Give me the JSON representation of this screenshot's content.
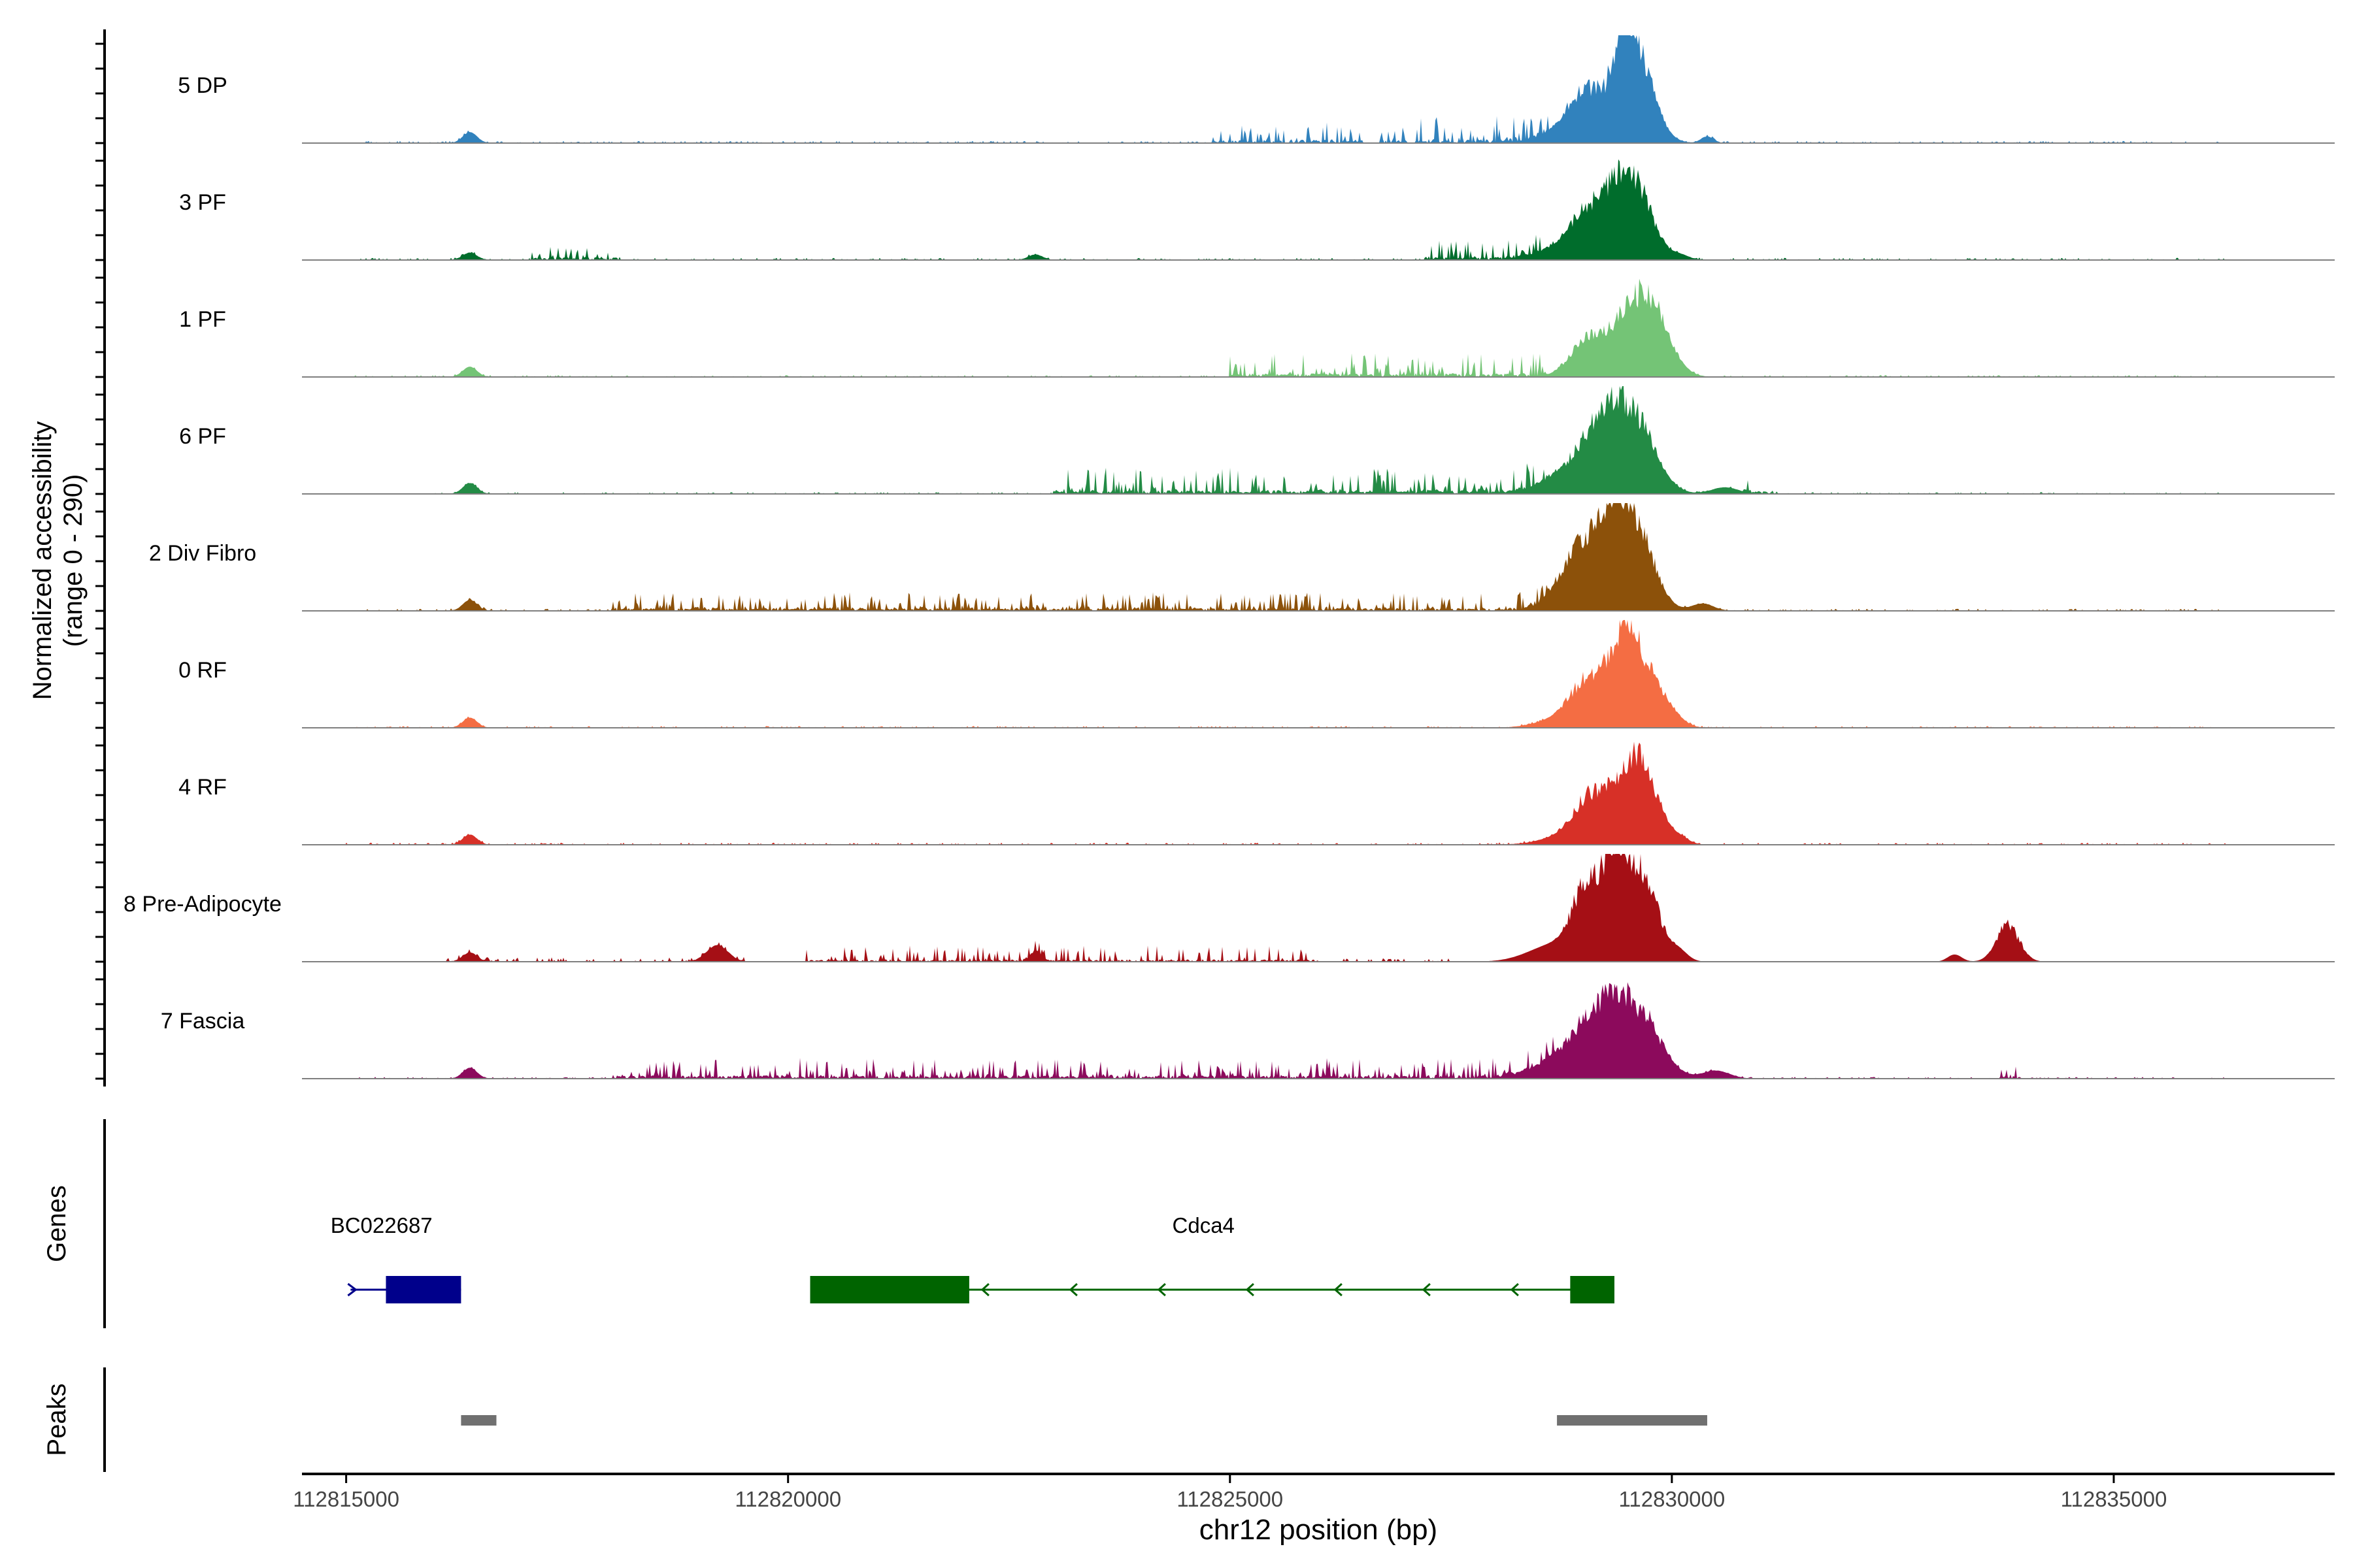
{
  "chart_data": {
    "type": "area",
    "title": "",
    "ylabel_line1": "Normalized accessibility",
    "ylabel_line2": "(range 0 - 290)",
    "y_range": [
      0,
      290
    ],
    "xlabel": "chr12 position (bp)",
    "x_range": [
      112814500,
      112837500
    ],
    "x_ticks": [
      112815000,
      112820000,
      112825000,
      112830000,
      112835000
    ],
    "x_tick_labels": [
      "112815000",
      "112820000",
      "112825000",
      "112830000",
      "112835000"
    ],
    "tracks": [
      {
        "name": "5 DP",
        "color": "#3182bd",
        "peaks": [
          [
            112829050,
            110,
            220
          ],
          [
            112829600,
            240,
            190
          ],
          [
            112829450,
            140,
            110
          ],
          [
            112828950,
            40,
            300
          ],
          [
            112816400,
            30,
            80
          ],
          [
            112830400,
            18,
            70
          ]
        ],
        "noise": [
          [
            112815100,
            112836200,
            6,
            0
          ]
        ],
        "extra_noise": [
          [
            112824800,
            112826500,
            8,
            55
          ],
          [
            112827100,
            112828600,
            10,
            75
          ],
          [
            112826700,
            112827000,
            10,
            45
          ]
        ]
      },
      {
        "name": "3 PF",
        "color": "#006d2c",
        "peaks": [
          [
            112829080,
            110,
            200
          ],
          [
            112829600,
            190,
            190
          ],
          [
            112829380,
            100,
            140
          ],
          [
            112828900,
            40,
            300
          ],
          [
            112816400,
            20,
            80
          ],
          [
            112822800,
            15,
            80
          ],
          [
            112830100,
            12,
            100
          ]
        ],
        "noise": [
          [
            112815100,
            112836300,
            6,
            0
          ]
        ],
        "extra_noise": [
          [
            112817100,
            112818100,
            8,
            40
          ],
          [
            112827200,
            112828700,
            8,
            55
          ]
        ]
      },
      {
        "name": "1 PF",
        "color": "#74c476",
        "peaks": [
          [
            112829050,
            95,
            200
          ],
          [
            112829600,
            200,
            250
          ],
          [
            112829800,
            60,
            150
          ],
          [
            112816400,
            28,
            80
          ],
          [
            112830050,
            15,
            120
          ]
        ],
        "noise": [
          [
            112815000,
            112836300,
            5,
            0
          ]
        ],
        "extra_noise": [
          [
            112825000,
            112828600,
            10,
            65
          ]
        ]
      },
      {
        "name": "6 PF",
        "color": "#238b45",
        "peaks": [
          [
            112829100,
            110,
            220
          ],
          [
            112829580,
            200,
            230
          ],
          [
            112829300,
            90,
            160
          ],
          [
            112828800,
            40,
            300
          ],
          [
            112816400,
            30,
            80
          ],
          [
            112830600,
            18,
            150
          ]
        ],
        "noise": [
          [
            112816000,
            112836200,
            5,
            0
          ]
        ],
        "extra_noise": [
          [
            112823000,
            112828700,
            9,
            70
          ],
          [
            112830800,
            112831200,
            15,
            45
          ]
        ]
      },
      {
        "name": "2 Div Fibro",
        "color": "#8c510a",
        "peaks": [
          [
            112829050,
            160,
            240
          ],
          [
            112829600,
            210,
            200
          ],
          [
            112829350,
            150,
            150
          ],
          [
            112828900,
            40,
            250
          ],
          [
            112816400,
            30,
            80
          ],
          [
            112830350,
            20,
            120
          ]
        ],
        "noise": [
          [
            112815200,
            112836200,
            6,
            0
          ]
        ],
        "extra_noise": [
          [
            112818000,
            112828700,
            7,
            50
          ]
        ]
      },
      {
        "name": "0 RF",
        "color": "#f46d43",
        "peaks": [
          [
            112829050,
            90,
            180
          ],
          [
            112829600,
            200,
            230
          ],
          [
            112829400,
            100,
            150
          ],
          [
            112828900,
            40,
            300
          ],
          [
            112816400,
            28,
            80
          ],
          [
            112830000,
            18,
            120
          ]
        ],
        "noise": [
          [
            112815100,
            112836300,
            5,
            0
          ]
        ],
        "extra_noise": []
      },
      {
        "name": "4 RF",
        "color": "#d73027",
        "peaks": [
          [
            112829080,
            100,
            180
          ],
          [
            112829550,
            210,
            220
          ],
          [
            112829750,
            60,
            150
          ],
          [
            112828900,
            30,
            300
          ],
          [
            112816400,
            28,
            80
          ],
          [
            112830100,
            15,
            100
          ]
        ],
        "noise": [
          [
            112815000,
            112836300,
            6,
            0
          ]
        ],
        "extra_noise": []
      },
      {
        "name": "8 Pre-Adipocyte",
        "color": "#a50f15",
        "peaks": [
          [
            112829050,
            190,
            160
          ],
          [
            112829600,
            260,
            220
          ],
          [
            112829350,
            160,
            120
          ],
          [
            112828700,
            50,
            300
          ],
          [
            112816400,
            25,
            80
          ],
          [
            112819200,
            45,
            120
          ],
          [
            112822800,
            28,
            60
          ],
          [
            112833800,
            100,
            130
          ],
          [
            112833200,
            20,
            80
          ],
          [
            112830100,
            18,
            90
          ]
        ],
        "noise": [
          [
            112816100,
            112819500,
            12,
            0
          ],
          [
            112826200,
            112827500,
            10,
            0
          ]
        ],
        "extra_noise": [
          [
            112820200,
            112826000,
            8,
            45
          ]
        ]
      },
      {
        "name": "7 Fascia",
        "color": "#8c0a5c",
        "peaks": [
          [
            112829000,
            110,
            200
          ],
          [
            112829600,
            190,
            250
          ],
          [
            112829300,
            110,
            150
          ],
          [
            112828700,
            40,
            300
          ],
          [
            112816400,
            30,
            80
          ],
          [
            112830500,
            22,
            150
          ]
        ],
        "noise": [
          [
            112815100,
            112836300,
            5,
            0
          ]
        ],
        "extra_noise": [
          [
            112818000,
            112828700,
            8,
            55
          ],
          [
            112833700,
            112833900,
            12,
            35
          ]
        ]
      }
    ],
    "genes_label": "Genes",
    "genes": [
      {
        "name": "BC022687",
        "strand": "+",
        "color": "#00008b",
        "line": [
          112815050,
          112816300
        ],
        "exons": [
          [
            112815450,
            112816300
          ]
        ],
        "label_x": 112815400
      },
      {
        "name": "Cdca4",
        "strand": "-",
        "color": "#006400",
        "line": [
          112820250,
          112829350
        ],
        "exons": [
          [
            112820250,
            112822050
          ],
          [
            112828850,
            112829350
          ]
        ],
        "label_x": 112824700
      }
    ],
    "peaks_label": "Peaks",
    "peak_regions": [
      [
        112816300,
        112816700
      ],
      [
        112828700,
        112830400
      ]
    ],
    "peak_color": "#707070"
  }
}
